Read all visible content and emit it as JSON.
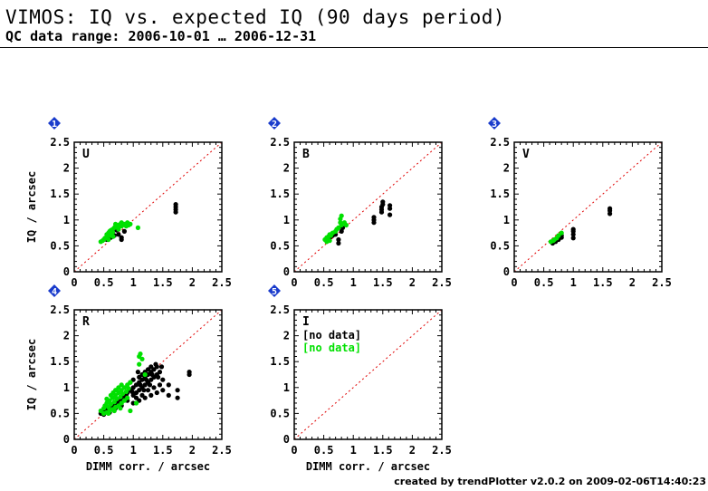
{
  "header": {
    "title": "VIMOS: IQ vs. expected IQ (90 days period)",
    "subtitle": "QC data range: 2006-10-01 … 2006-12-31"
  },
  "footer": {
    "text": "created by trendPlotter v2.0.2 on 2009-02-06T14:40:23"
  },
  "colors": {
    "series_a": "#000000",
    "series_b": "#00e000",
    "diagonal": "#e00000",
    "badge": "#1a3ccc"
  },
  "chart_data": [
    {
      "type": "scatter",
      "panel": "1",
      "label": "U",
      "xlim": [
        0,
        2.5
      ],
      "ylim": [
        0,
        2.5
      ],
      "xticks": [
        "0",
        "0.5",
        "1",
        "1.5",
        "2",
        "2.5"
      ],
      "yticks": [
        "0",
        "0.5",
        "1",
        "1.5",
        "2",
        "2.5"
      ],
      "ylabel": "IQ / arcsec",
      "xlabel": "",
      "diagonal": true,
      "no_data": [],
      "series": [
        {
          "color": "black",
          "points": [
            [
              0.55,
              0.62
            ],
            [
              0.62,
              0.66
            ],
            [
              0.68,
              0.7
            ],
            [
              0.75,
              0.72
            ],
            [
              0.8,
              0.66
            ],
            [
              0.8,
              0.62
            ],
            [
              0.85,
              0.78
            ],
            [
              0.7,
              0.85
            ],
            [
              0.72,
              0.8
            ],
            [
              1.72,
              1.15
            ],
            [
              1.72,
              1.2
            ],
            [
              1.72,
              1.25
            ],
            [
              1.72,
              1.3
            ]
          ]
        },
        {
          "color": "green",
          "points": [
            [
              0.45,
              0.58
            ],
            [
              0.48,
              0.6
            ],
            [
              0.5,
              0.62
            ],
            [
              0.52,
              0.65
            ],
            [
              0.55,
              0.68
            ],
            [
              0.55,
              0.72
            ],
            [
              0.58,
              0.75
            ],
            [
              0.6,
              0.78
            ],
            [
              0.6,
              0.72
            ],
            [
              0.62,
              0.8
            ],
            [
              0.65,
              0.82
            ],
            [
              0.65,
              0.76
            ],
            [
              0.68,
              0.85
            ],
            [
              0.7,
              0.88
            ],
            [
              0.7,
              0.92
            ],
            [
              0.72,
              0.86
            ],
            [
              0.75,
              0.9
            ],
            [
              0.75,
              0.82
            ],
            [
              0.78,
              0.92
            ],
            [
              0.8,
              0.88
            ],
            [
              0.8,
              0.95
            ],
            [
              0.82,
              0.9
            ],
            [
              0.85,
              0.92
            ],
            [
              0.88,
              0.88
            ],
            [
              0.9,
              0.95
            ],
            [
              0.92,
              0.9
            ],
            [
              0.95,
              0.92
            ],
            [
              0.58,
              0.62
            ],
            [
              0.62,
              0.7
            ],
            [
              0.66,
              0.68
            ],
            [
              1.08,
              0.85
            ]
          ]
        }
      ]
    },
    {
      "type": "scatter",
      "panel": "2",
      "label": "B",
      "xlim": [
        0,
        2.5
      ],
      "ylim": [
        0,
        2.5
      ],
      "xticks": [
        "0",
        "0.5",
        "1",
        "1.5",
        "2",
        "2.5"
      ],
      "yticks": [
        "0",
        "0.5",
        "1",
        "1.5",
        "2",
        "2.5"
      ],
      "ylabel": "",
      "xlabel": "",
      "diagonal": true,
      "no_data": [],
      "series": [
        {
          "color": "black",
          "points": [
            [
              0.55,
              0.6
            ],
            [
              0.6,
              0.65
            ],
            [
              0.65,
              0.7
            ],
            [
              0.7,
              0.72
            ],
            [
              0.75,
              0.62
            ],
            [
              0.75,
              0.55
            ],
            [
              0.8,
              0.78
            ],
            [
              0.82,
              0.85
            ],
            [
              1.35,
              0.95
            ],
            [
              1.35,
              1.0
            ],
            [
              1.35,
              1.05
            ],
            [
              1.48,
              1.15
            ],
            [
              1.48,
              1.2
            ],
            [
              1.48,
              1.25
            ],
            [
              1.5,
              1.3
            ],
            [
              1.5,
              1.35
            ],
            [
              1.62,
              1.1
            ],
            [
              1.62,
              1.22
            ],
            [
              1.62,
              1.28
            ]
          ]
        },
        {
          "color": "green",
          "points": [
            [
              0.52,
              0.62
            ],
            [
              0.55,
              0.66
            ],
            [
              0.58,
              0.68
            ],
            [
              0.6,
              0.72
            ],
            [
              0.62,
              0.7
            ],
            [
              0.65,
              0.75
            ],
            [
              0.7,
              0.78
            ],
            [
              0.72,
              0.82
            ],
            [
              0.75,
              0.85
            ],
            [
              0.78,
              0.95
            ],
            [
              0.78,
              1.02
            ],
            [
              0.8,
              1.08
            ],
            [
              0.8,
              0.9
            ],
            [
              0.85,
              0.95
            ],
            [
              0.88,
              0.9
            ],
            [
              0.55,
              0.58
            ],
            [
              0.6,
              0.6
            ]
          ]
        }
      ]
    },
    {
      "type": "scatter",
      "panel": "3",
      "label": "V",
      "xlim": [
        0,
        2.5
      ],
      "ylim": [
        0,
        2.5
      ],
      "xticks": [
        "0",
        "0.5",
        "1",
        "1.5",
        "2",
        "2.5"
      ],
      "yticks": [
        "0",
        "0.5",
        "1",
        "1.5",
        "2",
        "2.5"
      ],
      "ylabel": "",
      "xlabel": "",
      "diagonal": true,
      "no_data": [],
      "series": [
        {
          "color": "black",
          "points": [
            [
              0.65,
              0.55
            ],
            [
              0.7,
              0.58
            ],
            [
              0.75,
              0.62
            ],
            [
              0.8,
              0.66
            ],
            [
              0.8,
              0.7
            ],
            [
              1.0,
              0.65
            ],
            [
              1.0,
              0.72
            ],
            [
              1.0,
              0.78
            ],
            [
              1.0,
              0.82
            ],
            [
              1.62,
              1.12
            ],
            [
              1.62,
              1.18
            ],
            [
              1.62,
              1.22
            ]
          ]
        },
        {
          "color": "green",
          "points": [
            [
              0.62,
              0.58
            ],
            [
              0.68,
              0.62
            ],
            [
              0.72,
              0.65
            ],
            [
              0.75,
              0.7
            ],
            [
              0.8,
              0.75
            ],
            [
              0.66,
              0.6
            ]
          ]
        }
      ]
    },
    {
      "type": "scatter",
      "panel": "4",
      "label": "R",
      "xlim": [
        0,
        2.5
      ],
      "ylim": [
        0,
        2.5
      ],
      "xticks": [
        "0",
        "0.5",
        "1",
        "1.5",
        "2",
        "2.5"
      ],
      "yticks": [
        "0",
        "0.5",
        "1",
        "1.5",
        "2",
        "2.5"
      ],
      "ylabel": "IQ / arcsec",
      "xlabel": "DIMM corr. / arcsec",
      "diagonal": true,
      "no_data": [],
      "series": [
        {
          "color": "black",
          "points": [
            [
              0.45,
              0.5
            ],
            [
              0.5,
              0.55
            ],
            [
              0.55,
              0.6
            ],
            [
              0.6,
              0.58
            ],
            [
              0.65,
              0.65
            ],
            [
              0.7,
              0.7
            ],
            [
              0.75,
              0.72
            ],
            [
              0.8,
              0.78
            ],
            [
              0.85,
              0.82
            ],
            [
              0.9,
              0.9
            ],
            [
              0.95,
              0.95
            ],
            [
              1.0,
              1.0
            ],
            [
              1.05,
              1.05
            ],
            [
              1.1,
              1.1
            ],
            [
              1.15,
              1.15
            ],
            [
              1.2,
              1.2
            ],
            [
              1.25,
              1.25
            ],
            [
              1.3,
              1.3
            ],
            [
              1.35,
              1.35
            ],
            [
              1.4,
              1.4
            ],
            [
              1.0,
              0.85
            ],
            [
              1.05,
              0.9
            ],
            [
              1.1,
              0.95
            ],
            [
              1.15,
              1.0
            ],
            [
              1.2,
              1.05
            ],
            [
              1.25,
              1.1
            ],
            [
              1.3,
              1.15
            ],
            [
              1.35,
              1.2
            ],
            [
              1.4,
              1.25
            ],
            [
              1.45,
              1.3
            ],
            [
              1.1,
              1.2
            ],
            [
              1.15,
              1.25
            ],
            [
              1.2,
              1.3
            ],
            [
              1.25,
              1.35
            ],
            [
              1.3,
              1.4
            ],
            [
              1.0,
              1.15
            ],
            [
              0.95,
              1.1
            ],
            [
              1.05,
              0.8
            ],
            [
              1.15,
              0.85
            ],
            [
              1.25,
              0.95
            ],
            [
              1.35,
              1.0
            ],
            [
              1.45,
              1.05
            ],
            [
              1.5,
              1.15
            ],
            [
              1.5,
              0.95
            ],
            [
              1.4,
              0.9
            ],
            [
              1.3,
              0.85
            ],
            [
              1.2,
              0.8
            ],
            [
              1.1,
              0.75
            ],
            [
              1.6,
              1.05
            ],
            [
              1.6,
              0.85
            ],
            [
              1.75,
              0.95
            ],
            [
              1.75,
              0.8
            ],
            [
              1.95,
              1.3
            ],
            [
              1.95,
              1.25
            ],
            [
              0.9,
              0.75
            ],
            [
              0.8,
              0.65
            ],
            [
              0.7,
              0.6
            ],
            [
              0.6,
              0.52
            ],
            [
              0.5,
              0.48
            ],
            [
              1.0,
              0.7
            ],
            [
              1.12,
              1.05
            ],
            [
              1.22,
              1.15
            ],
            [
              1.32,
              1.25
            ],
            [
              1.42,
              1.2
            ],
            [
              1.48,
              1.4
            ],
            [
              1.38,
              1.45
            ],
            [
              1.28,
              1.05
            ],
            [
              1.18,
              0.95
            ],
            [
              0.98,
              0.92
            ],
            [
              0.88,
              0.85
            ],
            [
              1.08,
              1.3
            ]
          ]
        },
        {
          "color": "green",
          "points": [
            [
              0.45,
              0.55
            ],
            [
              0.5,
              0.6
            ],
            [
              0.52,
              0.65
            ],
            [
              0.55,
              0.7
            ],
            [
              0.58,
              0.62
            ],
            [
              0.6,
              0.75
            ],
            [
              0.62,
              0.68
            ],
            [
              0.65,
              0.8
            ],
            [
              0.68,
              0.72
            ],
            [
              0.7,
              0.85
            ],
            [
              0.72,
              0.78
            ],
            [
              0.75,
              0.9
            ],
            [
              0.78,
              0.82
            ],
            [
              0.8,
              0.95
            ],
            [
              0.82,
              0.88
            ],
            [
              0.85,
              1.0
            ],
            [
              0.88,
              0.92
            ],
            [
              0.9,
              1.05
            ],
            [
              0.92,
              0.98
            ],
            [
              0.95,
              1.1
            ],
            [
              0.55,
              0.52
            ],
            [
              0.6,
              0.55
            ],
            [
              0.65,
              0.58
            ],
            [
              0.7,
              0.62
            ],
            [
              0.75,
              0.65
            ],
            [
              0.8,
              0.7
            ],
            [
              0.85,
              0.75
            ],
            [
              0.9,
              0.8
            ],
            [
              0.5,
              0.5
            ],
            [
              0.58,
              0.5
            ],
            [
              0.68,
              0.55
            ],
            [
              0.78,
              0.6
            ],
            [
              0.62,
              0.85
            ],
            [
              0.7,
              0.95
            ],
            [
              0.75,
              1.0
            ],
            [
              1.1,
              1.6
            ],
            [
              1.12,
              1.65
            ],
            [
              1.1,
              1.45
            ],
            [
              1.15,
              1.55
            ],
            [
              0.95,
              0.55
            ],
            [
              1.05,
              0.7
            ],
            [
              1.2,
              1.25
            ],
            [
              0.8,
              1.05
            ],
            [
              0.72,
              0.95
            ],
            [
              0.66,
              0.9
            ],
            [
              0.55,
              0.78
            ]
          ]
        }
      ]
    },
    {
      "type": "scatter",
      "panel": "5",
      "label": "I",
      "xlim": [
        0,
        2.5
      ],
      "ylim": [
        0,
        2.5
      ],
      "xticks": [
        "0",
        "0.5",
        "1",
        "1.5",
        "2",
        "2.5"
      ],
      "yticks": [
        "0",
        "0.5",
        "1",
        "1.5",
        "2",
        "2.5"
      ],
      "ylabel": "",
      "xlabel": "DIMM corr. / arcsec",
      "diagonal": true,
      "no_data": [
        {
          "text": "[no data]",
          "color": "black"
        },
        {
          "text": "[no data]",
          "color": "green"
        }
      ],
      "series": []
    }
  ]
}
